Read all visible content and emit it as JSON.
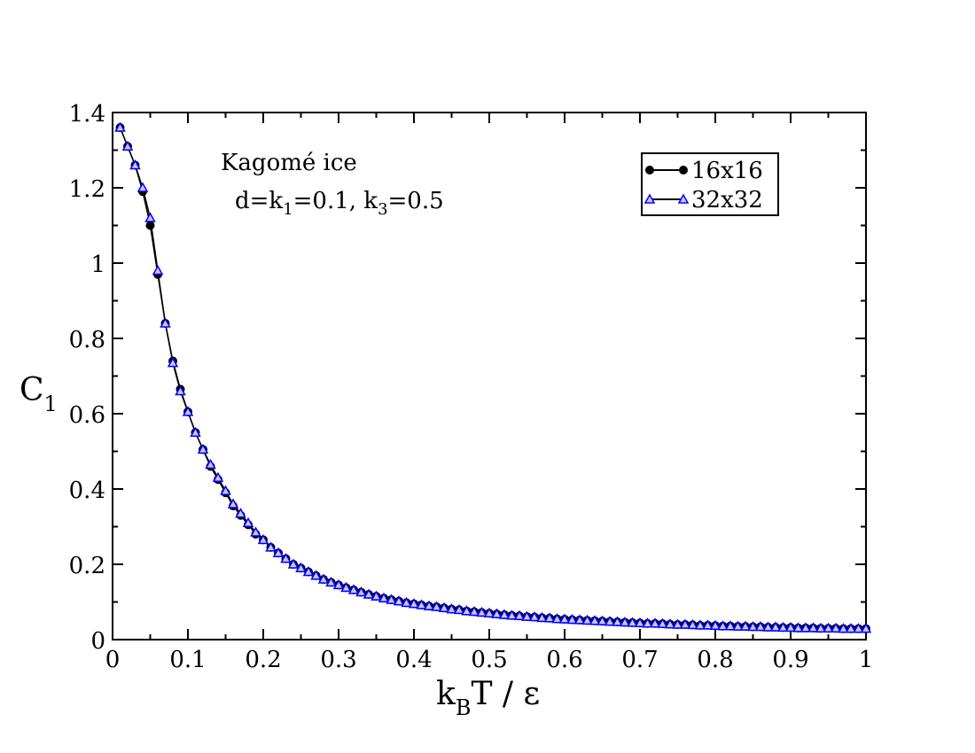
{
  "chart_data": {
    "type": "line",
    "title": "",
    "xlabel": {
      "main": "k",
      "sub": "B",
      "rest": "T / ε"
    },
    "ylabel": {
      "main": "C",
      "sub": "1"
    },
    "xlim": [
      0,
      1
    ],
    "ylim": [
      0,
      1.4
    ],
    "xticks": [
      "0",
      "0.1",
      "0.2",
      "0.3",
      "0.4",
      "0.5",
      "0.6",
      "0.7",
      "0.8",
      "0.9",
      "1"
    ],
    "yticks": [
      "0",
      "0.2",
      "0.4",
      "0.6",
      "0.8",
      "1",
      "1.2",
      "1.4"
    ],
    "annotation": {
      "line1": "Kagomé ice",
      "line2": [
        {
          "t": "d=k",
          "sub": false
        },
        {
          "t": "1",
          "sub": true
        },
        {
          "t": "=0.1, k",
          "sub": false
        },
        {
          "t": "3",
          "sub": true
        },
        {
          "t": "=0.5",
          "sub": false
        }
      ]
    },
    "legend_position": "top-right",
    "series": [
      {
        "name": "16x16",
        "color": "#000000",
        "marker": "circle",
        "x": [
          0.01,
          0.02,
          0.03,
          0.04,
          0.05,
          0.06,
          0.07,
          0.08,
          0.09,
          0.1,
          0.11,
          0.12,
          0.13,
          0.14,
          0.15,
          0.16,
          0.17,
          0.18,
          0.19,
          0.2,
          0.21,
          0.22,
          0.23,
          0.24,
          0.25,
          0.26,
          0.27,
          0.28,
          0.29,
          0.3,
          0.31,
          0.32,
          0.33,
          0.34,
          0.35,
          0.36,
          0.37,
          0.38,
          0.39,
          0.4,
          0.41,
          0.42,
          0.43,
          0.44,
          0.45,
          0.46,
          0.47,
          0.48,
          0.49,
          0.5,
          0.51,
          0.52,
          0.53,
          0.54,
          0.55,
          0.56,
          0.57,
          0.58,
          0.59,
          0.6,
          0.61,
          0.62,
          0.63,
          0.64,
          0.65,
          0.66,
          0.67,
          0.68,
          0.69,
          0.7,
          0.71,
          0.72,
          0.73,
          0.74,
          0.75,
          0.76,
          0.77,
          0.78,
          0.79,
          0.8,
          0.81,
          0.82,
          0.83,
          0.84,
          0.85,
          0.86,
          0.87,
          0.88,
          0.89,
          0.9,
          0.91,
          0.92,
          0.93,
          0.94,
          0.95,
          0.96,
          0.97,
          0.98,
          0.99,
          1.0
        ],
        "y": [
          1.36,
          1.31,
          1.26,
          1.19,
          1.1,
          0.97,
          0.84,
          0.74,
          0.665,
          0.605,
          0.55,
          0.505,
          0.46,
          0.425,
          0.39,
          0.355,
          0.33,
          0.305,
          0.28,
          0.265,
          0.245,
          0.23,
          0.215,
          0.2,
          0.19,
          0.18,
          0.17,
          0.16,
          0.152,
          0.145,
          0.138,
          0.132,
          0.126,
          0.12,
          0.115,
          0.11,
          0.106,
          0.102,
          0.098,
          0.095,
          0.092,
          0.089,
          0.087,
          0.084,
          0.081,
          0.079,
          0.076,
          0.074,
          0.072,
          0.07,
          0.068,
          0.066,
          0.064,
          0.063,
          0.061,
          0.06,
          0.058,
          0.057,
          0.055,
          0.054,
          0.053,
          0.052,
          0.051,
          0.05,
          0.049,
          0.048,
          0.047,
          0.046,
          0.045,
          0.044,
          0.043,
          0.043,
          0.042,
          0.041,
          0.04,
          0.04,
          0.039,
          0.038,
          0.038,
          0.037,
          0.036,
          0.036,
          0.035,
          0.035,
          0.034,
          0.034,
          0.033,
          0.033,
          0.032,
          0.032,
          0.031,
          0.031,
          0.031,
          0.03,
          0.03,
          0.03,
          0.029,
          0.029,
          0.029,
          0.029
        ]
      },
      {
        "name": "32x32",
        "color": "#0000ff",
        "marker": "triangle",
        "x": [
          0.01,
          0.02,
          0.03,
          0.04,
          0.05,
          0.06,
          0.07,
          0.08,
          0.09,
          0.1,
          0.11,
          0.12,
          0.13,
          0.14,
          0.15,
          0.16,
          0.17,
          0.18,
          0.19,
          0.2,
          0.21,
          0.22,
          0.23,
          0.24,
          0.25,
          0.26,
          0.27,
          0.28,
          0.29,
          0.3,
          0.31,
          0.32,
          0.33,
          0.34,
          0.35,
          0.36,
          0.37,
          0.38,
          0.39,
          0.4,
          0.41,
          0.42,
          0.43,
          0.44,
          0.45,
          0.46,
          0.47,
          0.48,
          0.49,
          0.5,
          0.51,
          0.52,
          0.53,
          0.54,
          0.55,
          0.56,
          0.57,
          0.58,
          0.59,
          0.6,
          0.61,
          0.62,
          0.63,
          0.64,
          0.65,
          0.66,
          0.67,
          0.68,
          0.69,
          0.7,
          0.71,
          0.72,
          0.73,
          0.74,
          0.75,
          0.76,
          0.77,
          0.78,
          0.79,
          0.8,
          0.81,
          0.82,
          0.83,
          0.84,
          0.85,
          0.86,
          0.87,
          0.88,
          0.89,
          0.9,
          0.91,
          0.92,
          0.93,
          0.94,
          0.95,
          0.96,
          0.97,
          0.98,
          0.99,
          1.0
        ],
        "y": [
          1.36,
          1.31,
          1.26,
          1.2,
          1.12,
          0.98,
          0.84,
          0.735,
          0.66,
          0.605,
          0.55,
          0.505,
          0.465,
          0.43,
          0.395,
          0.36,
          0.335,
          0.31,
          0.285,
          0.265,
          0.245,
          0.23,
          0.215,
          0.2,
          0.19,
          0.18,
          0.17,
          0.16,
          0.152,
          0.145,
          0.138,
          0.132,
          0.126,
          0.12,
          0.115,
          0.11,
          0.106,
          0.102,
          0.098,
          0.095,
          0.092,
          0.089,
          0.087,
          0.084,
          0.081,
          0.079,
          0.076,
          0.074,
          0.072,
          0.07,
          0.068,
          0.066,
          0.064,
          0.063,
          0.061,
          0.06,
          0.058,
          0.057,
          0.055,
          0.054,
          0.053,
          0.052,
          0.051,
          0.05,
          0.049,
          0.048,
          0.047,
          0.046,
          0.045,
          0.044,
          0.043,
          0.043,
          0.042,
          0.041,
          0.04,
          0.04,
          0.039,
          0.038,
          0.038,
          0.037,
          0.036,
          0.036,
          0.035,
          0.035,
          0.034,
          0.034,
          0.033,
          0.033,
          0.032,
          0.032,
          0.031,
          0.031,
          0.031,
          0.03,
          0.03,
          0.03,
          0.029,
          0.029,
          0.029,
          0.029
        ]
      }
    ]
  }
}
